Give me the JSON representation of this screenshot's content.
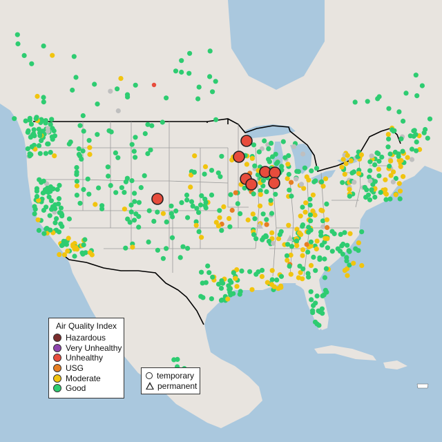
{
  "map": {
    "legend": {
      "title": "Air Quality Index",
      "categories": [
        {
          "label": "Hazardous",
          "color": "#7a2d2d"
        },
        {
          "label": "Very Unhealthy",
          "color": "#8e44ad"
        },
        {
          "label": "Unhealthy",
          "color": "#e74c3c"
        },
        {
          "label": "USG",
          "color": "#e67e22"
        },
        {
          "label": "Moderate",
          "color": "#f1c40f"
        },
        {
          "label": "Good",
          "color": "#2ecc71"
        }
      ]
    },
    "type_legend": {
      "items": [
        {
          "label": "temporary",
          "shape": "circle"
        },
        {
          "label": "permanent",
          "shape": "triangle"
        }
      ]
    },
    "colors": {
      "ocean": "#aac8de",
      "land": "#e8e4df",
      "land_usa": "#e6e2dd",
      "lakes": "#aac8de",
      "state_border": "#9a9a9a",
      "national_border": "#000000",
      "no_data": "#bfbfbf"
    }
  }
}
